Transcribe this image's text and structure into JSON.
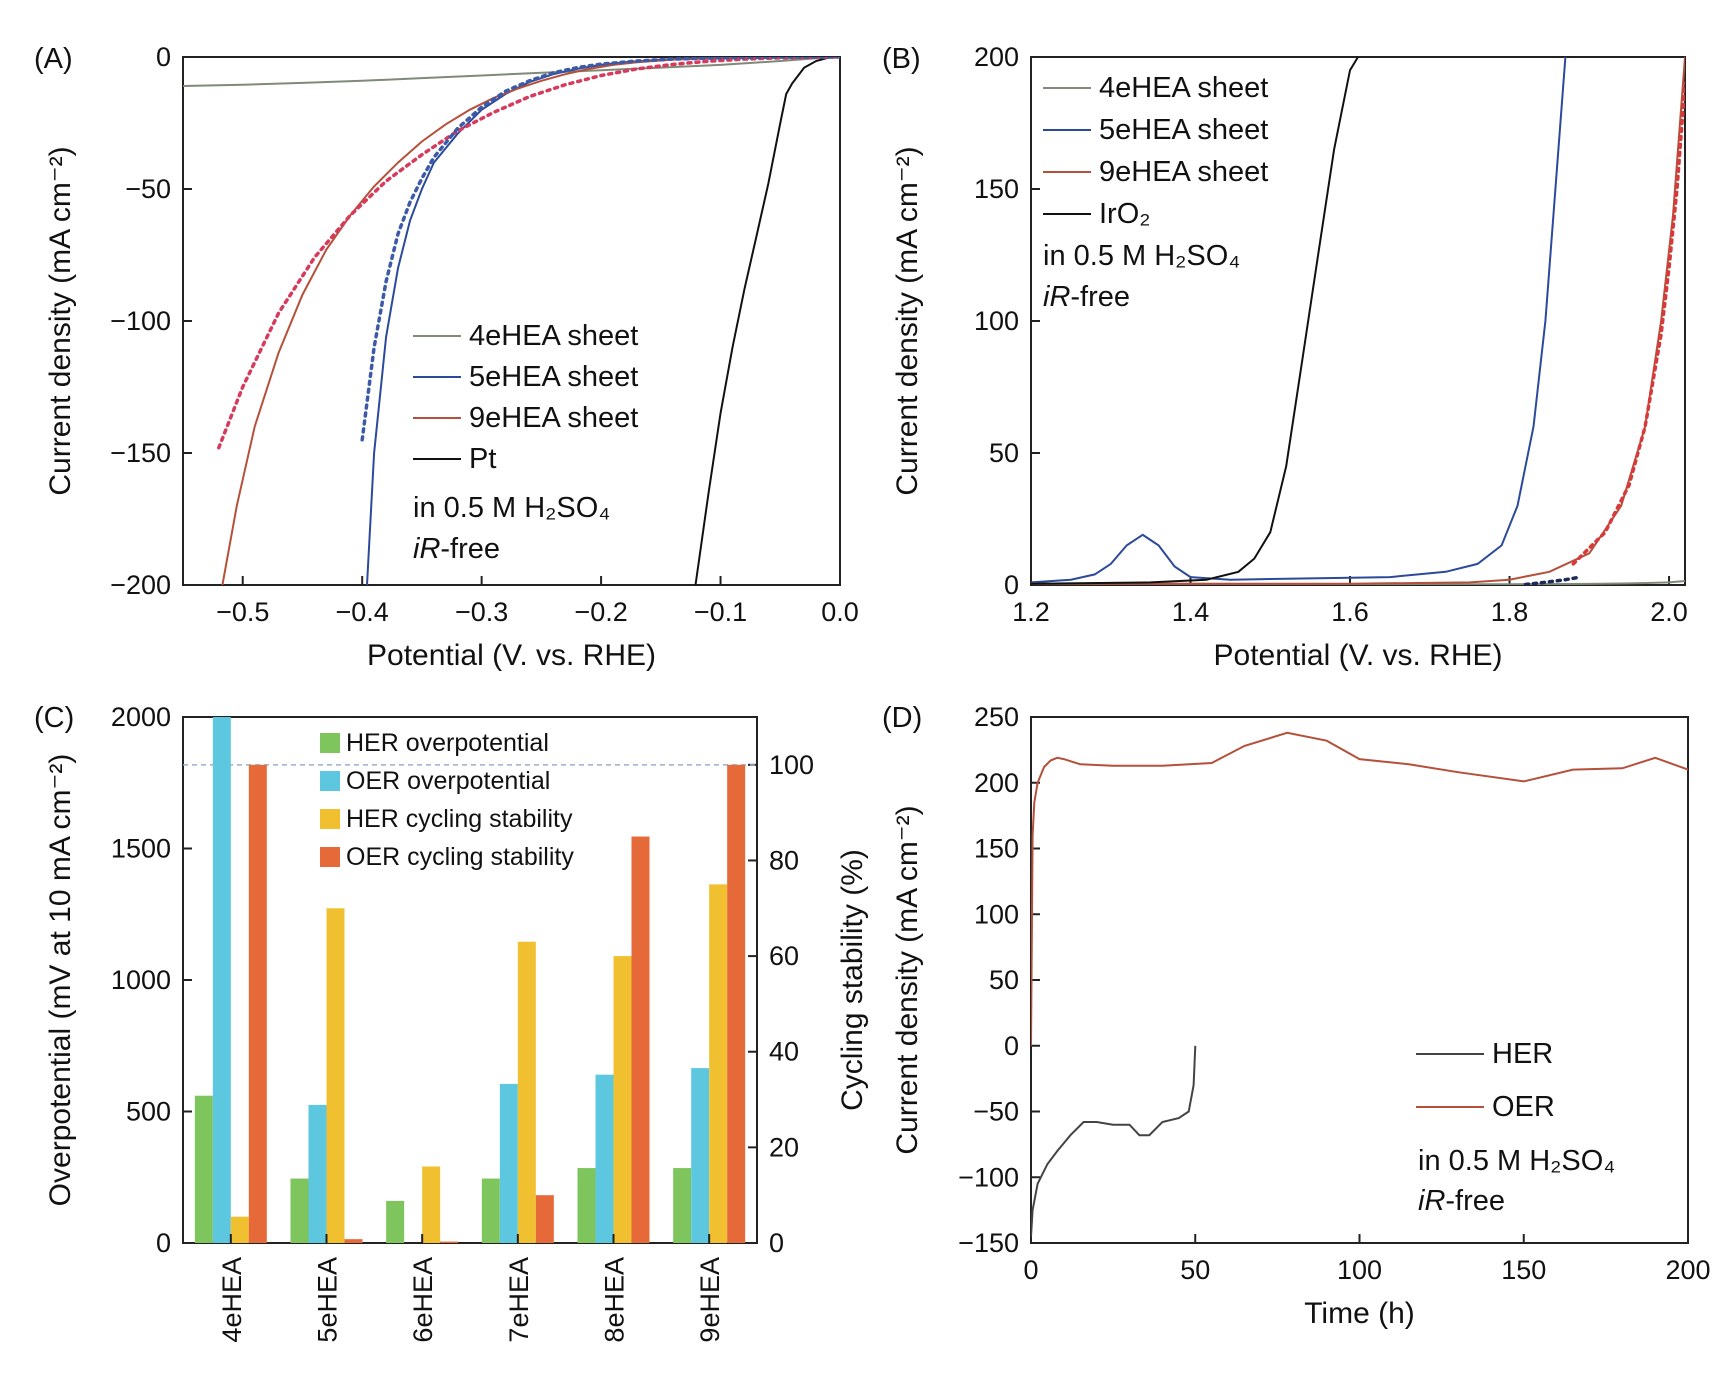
{
  "chart_data": [
    {
      "panel": "(A)",
      "type": "line",
      "xlabel": "Potential (V. vs. RHE)",
      "ylabel": "Current density (mA cm⁻²)",
      "xlim": [
        -0.55,
        0.0
      ],
      "ylim": [
        -200,
        0
      ],
      "xticks": [
        "−0.5",
        "−0.4",
        "−0.3",
        "−0.2",
        "−0.1",
        "0.0"
      ],
      "yticks": [
        "0",
        "−50",
        "−100",
        "−150",
        "−200"
      ],
      "legend_position": "center-right",
      "legend": [
        "4eHEA sheet",
        "5eHEA sheet",
        "9eHEA sheet",
        "Pt"
      ],
      "annotations": [
        "in 0.5 M H₂SO₄",
        "-free"
      ],
      "annotation_italic": "iR",
      "series": [
        {
          "name": "4eHEA sheet",
          "color": "#7f8a78",
          "x": [
            -0.55,
            -0.5,
            -0.45,
            -0.4,
            -0.35,
            -0.3,
            -0.25,
            -0.2,
            -0.15,
            -0.1,
            -0.05,
            -0.02,
            0.0
          ],
          "y": [
            -11,
            -10.5,
            -9.8,
            -9,
            -8,
            -7,
            -6,
            -5,
            -4,
            -3,
            -1.5,
            -0.5,
            0
          ]
        },
        {
          "name": "5eHEA sheet",
          "color": "#2c4a9a",
          "x": [
            -0.396,
            -0.39,
            -0.38,
            -0.37,
            -0.36,
            -0.35,
            -0.34,
            -0.32,
            -0.3,
            -0.28,
            -0.26,
            -0.24,
            -0.22,
            -0.2,
            -0.18,
            -0.15,
            -0.12,
            -0.09,
            -0.05,
            0.0
          ],
          "y": [
            -200,
            -150,
            -106,
            -80,
            -62,
            -50,
            -40,
            -29,
            -20,
            -14,
            -9.5,
            -6.5,
            -4.5,
            -3,
            -2,
            -1,
            -0.5,
            -0.2,
            -0.05,
            0
          ]
        },
        {
          "name": "9eHEA sheet",
          "color": "#b5503a",
          "x": [
            -0.517,
            -0.505,
            -0.49,
            -0.47,
            -0.45,
            -0.43,
            -0.41,
            -0.39,
            -0.37,
            -0.35,
            -0.33,
            -0.31,
            -0.29,
            -0.27,
            -0.25,
            -0.23,
            -0.21,
            -0.19,
            -0.17,
            -0.14,
            -0.1,
            -0.05,
            0.0
          ],
          "y": [
            -200,
            -170,
            -140,
            -112,
            -90,
            -73,
            -60,
            -49,
            -40,
            -32,
            -25.5,
            -20,
            -15.5,
            -12,
            -9,
            -6.5,
            -4.5,
            -3,
            -2,
            -1,
            -0.4,
            -0.1,
            0
          ]
        },
        {
          "name": "Pt",
          "color": "#111111",
          "x": [
            -0.121,
            -0.11,
            -0.1,
            -0.09,
            -0.08,
            -0.07,
            -0.06,
            -0.05,
            -0.045,
            -0.04,
            -0.035,
            -0.03,
            -0.02,
            -0.01,
            0.0
          ],
          "y": [
            -200,
            -165,
            -135,
            -110,
            -88,
            -68,
            -48,
            -25,
            -14,
            -10,
            -7,
            -4,
            -1.5,
            -0.3,
            0
          ]
        },
        {
          "name": "9eHEA fit",
          "style": "dotted",
          "color": "#d63a5c",
          "x": [
            -0.52,
            -0.5,
            -0.47,
            -0.44,
            -0.41,
            -0.38,
            -0.35,
            -0.32,
            -0.29,
            -0.26,
            -0.23,
            -0.2,
            -0.17,
            -0.14,
            -0.11,
            -0.08,
            -0.05,
            -0.02,
            0.0
          ],
          "y": [
            -148,
            -125,
            -97,
            -76,
            -60,
            -47,
            -37,
            -28,
            -21,
            -15,
            -10.5,
            -7,
            -4.5,
            -2.8,
            -1.6,
            -0.8,
            -0.3,
            -0.1,
            0
          ]
        },
        {
          "name": "5eHEA fit",
          "style": "dotted",
          "color": "#3c5aa8",
          "x": [
            -0.4,
            -0.39,
            -0.38,
            -0.37,
            -0.36,
            -0.35,
            -0.34,
            -0.32,
            -0.3,
            -0.28,
            -0.26,
            -0.24,
            -0.22,
            -0.2,
            -0.17,
            -0.14,
            -0.1,
            -0.05,
            0.0
          ],
          "y": [
            -145,
            -110,
            -85,
            -67,
            -55,
            -46,
            -38,
            -27,
            -19,
            -13,
            -9,
            -6,
            -4,
            -2.7,
            -1.5,
            -0.8,
            -0.3,
            -0.05,
            0
          ]
        }
      ]
    },
    {
      "panel": "(B)",
      "type": "line",
      "xlabel": "Potential (V. vs. RHE)",
      "ylabel": "Current density (mA cm⁻²)",
      "xlim": [
        1.2,
        2.02
      ],
      "ylim": [
        0,
        200
      ],
      "xticks": [
        "1.2",
        "1.4",
        "1.6",
        "1.8",
        "2.0"
      ],
      "yticks": [
        "0",
        "50",
        "100",
        "150",
        "200"
      ],
      "legend_position": "top-left",
      "legend": [
        "4eHEA sheet",
        "5eHEA sheet",
        "9eHEA sheet",
        "IrO₂"
      ],
      "annotations": [
        "in 0.5 M H₂SO₄",
        "-free"
      ],
      "annotation_italic": "iR",
      "series": [
        {
          "name": "4eHEA sheet",
          "color": "#7f8a78",
          "x": [
            1.2,
            1.4,
            1.6,
            1.8,
            1.9,
            1.95,
            2.0,
            2.02
          ],
          "y": [
            0.5,
            0.4,
            0.3,
            0.3,
            0.4,
            0.6,
            1.0,
            1.5
          ]
        },
        {
          "name": "5eHEA sheet",
          "color": "#2c4a9a",
          "x": [
            1.2,
            1.25,
            1.28,
            1.3,
            1.32,
            1.34,
            1.36,
            1.38,
            1.4,
            1.45,
            1.55,
            1.65,
            1.72,
            1.76,
            1.79,
            1.81,
            1.83,
            1.845,
            1.855,
            1.865,
            1.87
          ],
          "y": [
            1,
            2,
            4,
            8,
            15,
            19,
            15,
            7,
            3,
            2,
            2.5,
            3,
            5,
            8,
            15,
            30,
            60,
            100,
            140,
            180,
            200
          ]
        },
        {
          "name": "9eHEA sheet",
          "color": "#b5503a",
          "x": [
            1.2,
            1.6,
            1.75,
            1.8,
            1.85,
            1.9,
            1.94,
            1.97,
            1.99,
            2.005,
            2.015,
            2.02
          ],
          "y": [
            0.5,
            0.5,
            1,
            2,
            5,
            12,
            30,
            60,
            100,
            140,
            180,
            200
          ]
        },
        {
          "name": "IrO₂",
          "color": "#111111",
          "x": [
            1.2,
            1.35,
            1.42,
            1.46,
            1.48,
            1.5,
            1.52,
            1.54,
            1.56,
            1.58,
            1.6,
            1.61
          ],
          "y": [
            0.5,
            1,
            2,
            5,
            10,
            20,
            45,
            85,
            125,
            165,
            195,
            200
          ]
        },
        {
          "name": "9eHEA fit",
          "style": "dotted",
          "color": "#d63a3a",
          "x": [
            1.88,
            1.92,
            1.95,
            1.97,
            1.99,
            2.0,
            2.01,
            2.02
          ],
          "y": [
            8,
            20,
            38,
            60,
            95,
            120,
            150,
            190
          ]
        },
        {
          "name": "4eHEA fit",
          "style": "dotted",
          "color": "#1a2a5a",
          "x": [
            1.82,
            1.85,
            1.87,
            1.885
          ],
          "y": [
            0.2,
            1.2,
            2,
            2.8
          ]
        }
      ]
    },
    {
      "panel": "(C)",
      "type": "bar",
      "ylabel": "Overpotential (mV at 10 mA cm⁻²)",
      "y2label": "Cycling stability (%)",
      "ylim": [
        0,
        2000
      ],
      "y2lim": [
        0,
        110
      ],
      "yticks": [
        "0",
        "500",
        "1000",
        "1500",
        "2000"
      ],
      "y2ticks": [
        "0",
        "20",
        "40",
        "60",
        "80",
        "100"
      ],
      "legend_position": "top-center",
      "categories": [
        "4eHEA",
        "5eHEA",
        "6eHEA",
        "7eHEA",
        "8eHEA",
        "9eHEA"
      ],
      "series": [
        {
          "name": "HER overpotential",
          "axis": "left",
          "color": "#7dc55c",
          "values": [
            560,
            245,
            160,
            245,
            285,
            285
          ]
        },
        {
          "name": "OER overpotential",
          "axis": "left",
          "color": "#5ec7e0",
          "values": [
            2000,
            525,
            0,
            605,
            640,
            665
          ]
        },
        {
          "name": "HER cycling stability",
          "axis": "right",
          "color": "#f0c030",
          "values": [
            5.5,
            70,
            16,
            63,
            60,
            75
          ]
        },
        {
          "name": "OER cycling stability",
          "axis": "right",
          "color": "#e6693a",
          "values": [
            100,
            0.8,
            0.3,
            10,
            85,
            100
          ]
        }
      ],
      "reference_line": {
        "axis": "right",
        "value": 100,
        "style": "dashed"
      }
    },
    {
      "panel": "(D)",
      "type": "line",
      "xlabel": "Time (h)",
      "ylabel": "Current density (mA cm⁻²)",
      "xlim": [
        0,
        200
      ],
      "ylim": [
        -150,
        250
      ],
      "xticks": [
        "0",
        "50",
        "100",
        "150",
        "200"
      ],
      "yticks": [
        "250",
        "200",
        "150",
        "100",
        "50",
        "0",
        "−50",
        "−100",
        "−150"
      ],
      "legend_position": "bottom-right",
      "legend": [
        "HER",
        "OER"
      ],
      "annotations": [
        "in 0.5 M H₂SO₄",
        "-free"
      ],
      "annotation_italic": "iR",
      "series": [
        {
          "name": "HER",
          "color": "#444444",
          "x": [
            0,
            0.5,
            2,
            5,
            8,
            12,
            16,
            20,
            25,
            30,
            33,
            36,
            40,
            45,
            48,
            49.5,
            50
          ],
          "y": [
            -145,
            -125,
            -105,
            -90,
            -80,
            -68,
            -58,
            -58,
            -60,
            -60,
            -68,
            -68,
            -58,
            -55,
            -50,
            -30,
            0
          ]
        },
        {
          "name": "OER",
          "color": "#b5503a",
          "x": [
            0,
            0.5,
            1,
            2,
            4,
            6,
            8,
            10,
            15,
            25,
            40,
            55,
            65,
            78,
            90,
            100,
            115,
            130,
            150,
            165,
            180,
            190,
            200
          ],
          "y": [
            0,
            160,
            185,
            200,
            212,
            217,
            219,
            218,
            214,
            213,
            213,
            215,
            228,
            238,
            232,
            218,
            214,
            208,
            201,
            210,
            211,
            219,
            210
          ]
        }
      ]
    }
  ]
}
